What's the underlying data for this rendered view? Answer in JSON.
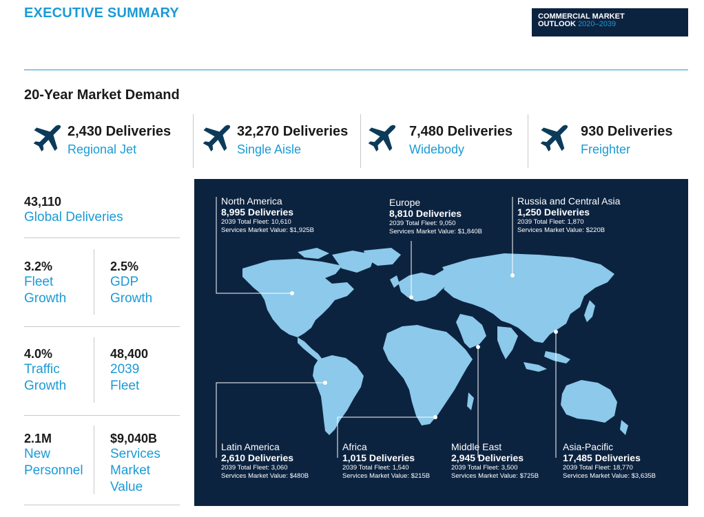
{
  "header": {
    "title": "EXECUTIVE SUMMARY",
    "badge_line1": "COMMERCIAL MARKET",
    "badge_line2": "OUTLOOK",
    "badge_years": "2020–2039"
  },
  "section_title": "20-Year Market Demand",
  "categories": [
    {
      "deliveries": "2,430 Deliveries",
      "label": "Regional Jet",
      "icon": "airplane-icon"
    },
    {
      "deliveries": "32,270 Deliveries",
      "label": "Single Aisle",
      "icon": "airplane-icon"
    },
    {
      "deliveries": "7,480 Deliveries",
      "label": "Widebody",
      "icon": "airplane-icon"
    },
    {
      "deliveries": "930 Deliveries",
      "label": "Freighter",
      "icon": "airplane-icon"
    }
  ],
  "stats": {
    "global": {
      "value": "43,110",
      "label": "Global Deliveries"
    },
    "fleet_growth": {
      "value": "3.2%",
      "l1": "Fleet",
      "l2": "Growth"
    },
    "gdp_growth": {
      "value": "2.5%",
      "l1": "GDP",
      "l2": "Growth"
    },
    "traffic_growth": {
      "value": "4.0%",
      "l1": "Traffic",
      "l2": "Growth"
    },
    "fleet_2039": {
      "value": "48,400",
      "l1": "2039",
      "l2": "Fleet"
    },
    "personnel": {
      "value": "2.1M",
      "l1": "New",
      "l2": "Personnel"
    },
    "services": {
      "value": "$9,040B",
      "l1": "Services",
      "l2": "Market",
      "l3": "Value"
    }
  },
  "regions": [
    {
      "name": "North America",
      "deliveries": "8,995 Deliveries",
      "fleet": "2039 Total Fleet: 10,610",
      "services": "Services Market Value: $1,925B"
    },
    {
      "name": "Europe",
      "deliveries": "8,810 Deliveries",
      "fleet": "2039 Total Fleet: 9,050",
      "services": "Services Market Value: $1,840B"
    },
    {
      "name": "Russia and Central Asia",
      "deliveries": "1,250 Deliveries",
      "fleet": "2039 Total Fleet: 1,870",
      "services": "Services Market Value: $220B"
    },
    {
      "name": "Latin America",
      "deliveries": "2,610 Deliveries",
      "fleet": "2039 Total Fleet: 3,060",
      "services": "Services Market Value: $480B"
    },
    {
      "name": "Africa",
      "deliveries": "1,015 Deliveries",
      "fleet": "2039 Total Fleet: 1,540",
      "services": "Services Market Value: $215B"
    },
    {
      "name": "Middle East",
      "deliveries": "2,945 Deliveries",
      "fleet": "2039 Total Fleet: 3,500",
      "services": "Services Market Value: $725B"
    },
    {
      "name": "Asia-Pacific",
      "deliveries": "17,485 Deliveries",
      "fleet": "2039 Total Fleet: 18,770",
      "services": "Services Market Value: $3,635B"
    }
  ],
  "colors": {
    "accent": "#1a9ad6",
    "navy": "#0c2340",
    "land": "#8cc9ea"
  }
}
